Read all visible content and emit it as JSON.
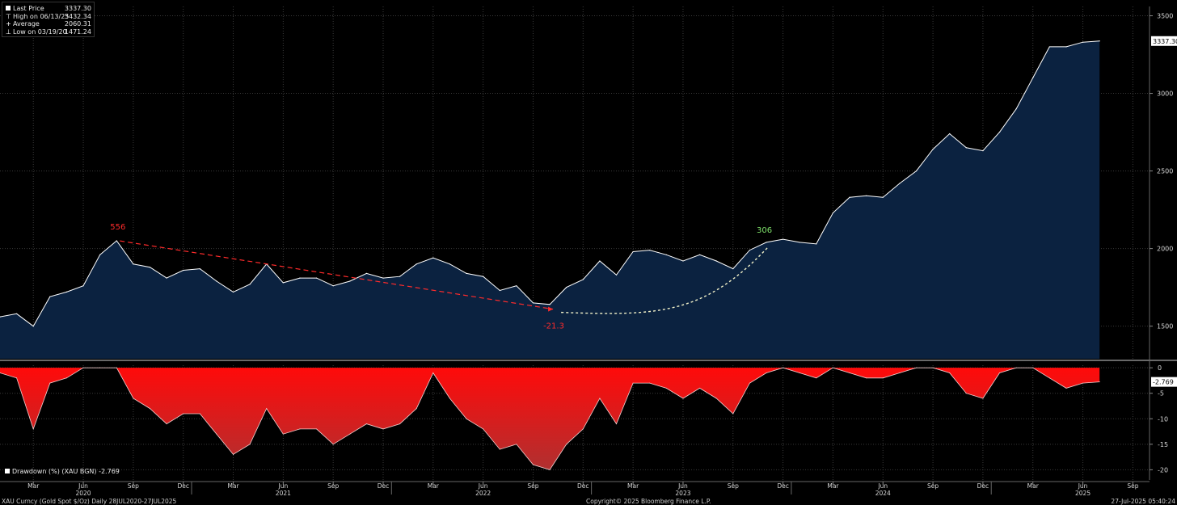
{
  "legend": {
    "items": [
      {
        "label": "Last Price",
        "value": "3337.30",
        "icon": "filled-square-icon"
      },
      {
        "label": "High on 06/13/25",
        "value": "3432.34",
        "icon": "high-marker-icon"
      },
      {
        "label": "Average",
        "value": "2060.31",
        "icon": "average-line-icon"
      },
      {
        "label": "Low on 03/19/20",
        "value": "1471.24",
        "icon": "low-marker-icon"
      }
    ]
  },
  "drawdown_legend": "Drawdown (%) (XAU BGN) -2.769",
  "footer": {
    "left": "XAU Curncy (Gold Spot  $/Oz)  Daily 28JUL2020-27JUL2025",
    "center": "Copyright© 2025 Bloomberg Finance L.P.",
    "right": "27-Jul-2025 05:40:24"
  },
  "colors": {
    "background": "#000000",
    "price_line": "#ffffff",
    "price_fill": "#0b2240",
    "drawdown_fill": "#ff0a0a",
    "annotation_red": "#ff2b2b",
    "annotation_green": "#7ee06a",
    "dotted_curve": "#f0f0c8"
  },
  "chart_data": [
    {
      "type": "area",
      "title": "",
      "x_range": [
        "2020-01",
        "2025-10"
      ],
      "ylim": [
        1290,
        3560
      ],
      "y_ticks": [
        1500,
        2000,
        2500,
        3000,
        3500
      ],
      "last_value_label": "3337.30",
      "grid": true,
      "series": [
        {
          "x": [
            "2020-01",
            "2020-02",
            "2020-03",
            "2020-04",
            "2020-05",
            "2020-06",
            "2020-07",
            "2020-08",
            "2020-09",
            "2020-10",
            "2020-11",
            "2020-12",
            "2021-01",
            "2021-02",
            "2021-03",
            "2021-04",
            "2021-05",
            "2021-06",
            "2021-07",
            "2021-08",
            "2021-09",
            "2021-10",
            "2021-11",
            "2021-12",
            "2022-01",
            "2022-02",
            "2022-03",
            "2022-04",
            "2022-05",
            "2022-06",
            "2022-07",
            "2022-08",
            "2022-09",
            "2022-10",
            "2022-11",
            "2022-12",
            "2023-01",
            "2023-02",
            "2023-03",
            "2023-04",
            "2023-05",
            "2023-06",
            "2023-07",
            "2023-08",
            "2023-09",
            "2023-10",
            "2023-11",
            "2023-12",
            "2024-01",
            "2024-02",
            "2024-03",
            "2024-04",
            "2024-05",
            "2024-06",
            "2024-07",
            "2024-08",
            "2024-09",
            "2024-10",
            "2024-11",
            "2024-12",
            "2025-01",
            "2025-02",
            "2025-03",
            "2025-04",
            "2025-05",
            "2025-06",
            "2025-07"
          ],
          "y": [
            1560,
            1580,
            1500,
            1690,
            1720,
            1760,
            1960,
            2050,
            1900,
            1880,
            1810,
            1860,
            1870,
            1790,
            1720,
            1770,
            1900,
            1780,
            1810,
            1810,
            1760,
            1790,
            1840,
            1810,
            1820,
            1900,
            1940,
            1900,
            1840,
            1820,
            1730,
            1760,
            1650,
            1640,
            1750,
            1800,
            1920,
            1830,
            1980,
            1990,
            1960,
            1920,
            1960,
            1920,
            1870,
            1990,
            2040,
            2060,
            2040,
            2030,
            2230,
            2330,
            2340,
            2330,
            2420,
            2500,
            2640,
            2740,
            2650,
            2630,
            2750,
            2900,
            3100,
            3300,
            3300,
            3330,
            3337.3
          ]
        }
      ],
      "annotations": [
        {
          "text": "556",
          "color": "red",
          "x": "2020-08",
          "y": 2060
        },
        {
          "text": "-21.3",
          "color": "red",
          "x": "2022-10",
          "y": 1620
        },
        {
          "text": "306",
          "color": "green",
          "x": "2023-11",
          "y": 2040
        }
      ]
    },
    {
      "type": "area",
      "title": "",
      "ylabel": "",
      "ylim": [
        -22,
        0.5
      ],
      "y_ticks": [
        0,
        -5,
        -10,
        -15,
        -20
      ],
      "last_value_label": "-2.769",
      "series": [
        {
          "name": "Drawdown (%) (XAU BGN)",
          "x": [
            "2020-01",
            "2020-02",
            "2020-03",
            "2020-04",
            "2020-05",
            "2020-06",
            "2020-07",
            "2020-08",
            "2020-09",
            "2020-10",
            "2020-11",
            "2020-12",
            "2021-01",
            "2021-02",
            "2021-03",
            "2021-04",
            "2021-05",
            "2021-06",
            "2021-07",
            "2021-08",
            "2021-09",
            "2021-10",
            "2021-11",
            "2021-12",
            "2022-01",
            "2022-02",
            "2022-03",
            "2022-04",
            "2022-05",
            "2022-06",
            "2022-07",
            "2022-08",
            "2022-09",
            "2022-10",
            "2022-11",
            "2022-12",
            "2023-01",
            "2023-02",
            "2023-03",
            "2023-04",
            "2023-05",
            "2023-06",
            "2023-07",
            "2023-08",
            "2023-09",
            "2023-10",
            "2023-11",
            "2023-12",
            "2024-01",
            "2024-02",
            "2024-03",
            "2024-04",
            "2024-05",
            "2024-06",
            "2024-07",
            "2024-08",
            "2024-09",
            "2024-10",
            "2024-11",
            "2024-12",
            "2025-01",
            "2025-02",
            "2025-03",
            "2025-04",
            "2025-05",
            "2025-06",
            "2025-07"
          ],
          "y": [
            -1,
            -2,
            -12,
            -3,
            -2,
            0,
            0,
            0,
            -6,
            -8,
            -11,
            -9,
            -9,
            -13,
            -17,
            -15,
            -8,
            -13,
            -12,
            -12,
            -15,
            -13,
            -11,
            -12,
            -11,
            -8,
            -1,
            -6,
            -10,
            -12,
            -16,
            -15,
            -19,
            -20,
            -15,
            -12,
            -6,
            -11,
            -3,
            -3,
            -4,
            -6,
            -4,
            -6,
            -9,
            -3,
            -1,
            0,
            -1,
            -2,
            0,
            -1,
            -2,
            -2,
            -1,
            0,
            0,
            -1,
            -5,
            -6,
            -1,
            0,
            0,
            -2,
            -4,
            -3,
            -2.769
          ]
        }
      ],
      "x_ticks": [
        "Mar",
        "Jun",
        "Sep",
        "Dec",
        "Mar",
        "Jun",
        "Sep",
        "Dec",
        "Mar",
        "Jun",
        "Sep",
        "Dec",
        "Mar",
        "Jun",
        "Sep",
        "Dec",
        "Mar",
        "Jun",
        "Sep",
        "Dec",
        "Mar",
        "Jun",
        "Sep"
      ],
      "x_year_labels": [
        "2020",
        "2021",
        "2022",
        "2023",
        "2024",
        "2025"
      ]
    }
  ]
}
